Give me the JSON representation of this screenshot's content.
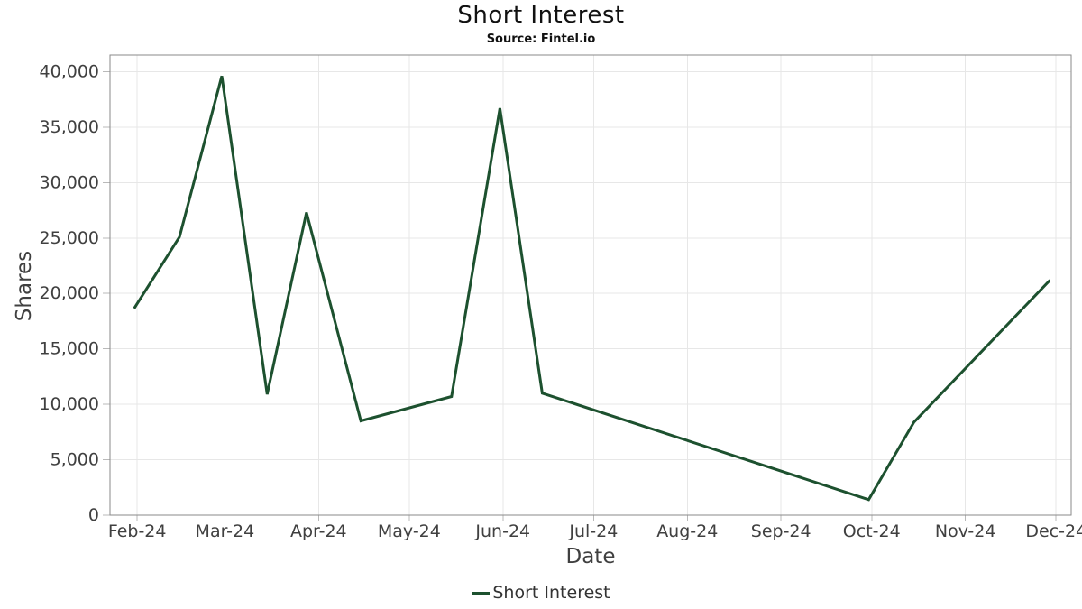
{
  "colors": {
    "line": "#1d512f",
    "grid": "#e7e7e7",
    "frame": "#8a8a8a",
    "tick": "#b9b9b9",
    "axis_text": "#404040",
    "legend_text": "#333333",
    "title_text": "#111111"
  },
  "chart_data": {
    "type": "line",
    "title": "Short Interest",
    "subtitle": "Source: Fintel.io",
    "xlabel": "Date",
    "ylabel": "Shares",
    "grid": true,
    "legend_position": "bottom",
    "xlim": [
      "2024-01-23",
      "2024-12-06"
    ],
    "ylim": [
      0,
      41500
    ],
    "x_axis": {
      "ticks": [
        {
          "label": "Feb-24",
          "date": "2024-02-01"
        },
        {
          "label": "Mar-24",
          "date": "2024-03-01"
        },
        {
          "label": "Apr-24",
          "date": "2024-04-01"
        },
        {
          "label": "May-24",
          "date": "2024-05-01"
        },
        {
          "label": "Jun-24",
          "date": "2024-06-01"
        },
        {
          "label": "Jul-24",
          "date": "2024-07-01"
        },
        {
          "label": "Aug-24",
          "date": "2024-08-01"
        },
        {
          "label": "Sep-24",
          "date": "2024-09-01"
        },
        {
          "label": "Oct-24",
          "date": "2024-10-01"
        },
        {
          "label": "Nov-24",
          "date": "2024-11-01"
        },
        {
          "label": "Dec-24",
          "date": "2024-12-01"
        }
      ]
    },
    "y_axis": {
      "ticks": [
        {
          "label": "0",
          "value": 0
        },
        {
          "label": "5,000",
          "value": 5000
        },
        {
          "label": "10,000",
          "value": 10000
        },
        {
          "label": "15,000",
          "value": 15000
        },
        {
          "label": "20,000",
          "value": 20000
        },
        {
          "label": "25,000",
          "value": 25000
        },
        {
          "label": "30,000",
          "value": 30000
        },
        {
          "label": "35,000",
          "value": 35000
        },
        {
          "label": "40,000",
          "value": 40000
        }
      ]
    },
    "series": [
      {
        "name": "Short Interest",
        "color": "#1d512f",
        "points": [
          {
            "date": "2024-01-31",
            "value": 18650
          },
          {
            "date": "2024-02-15",
            "value": 25100
          },
          {
            "date": "2024-02-29",
            "value": 39600
          },
          {
            "date": "2024-03-15",
            "value": 10900
          },
          {
            "date": "2024-03-28",
            "value": 27300
          },
          {
            "date": "2024-04-15",
            "value": 8500
          },
          {
            "date": "2024-05-15",
            "value": 10700
          },
          {
            "date": "2024-05-31",
            "value": 36700
          },
          {
            "date": "2024-06-14",
            "value": 11000
          },
          {
            "date": "2024-09-30",
            "value": 1400
          },
          {
            "date": "2024-10-15",
            "value": 8400
          },
          {
            "date": "2024-11-29",
            "value": 21200
          }
        ]
      }
    ]
  }
}
